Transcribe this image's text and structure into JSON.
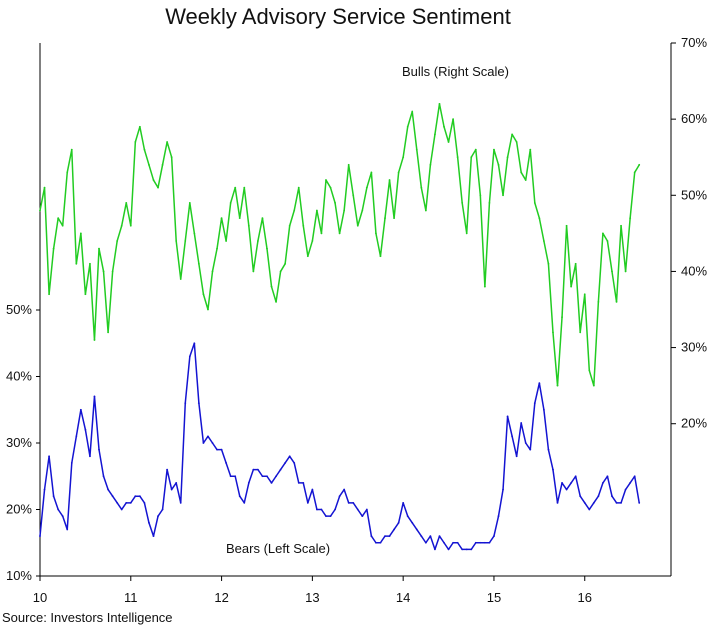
{
  "chart_data": {
    "type": "line",
    "title": "Weekly Advisory Service Sentiment",
    "source": "Source: Investors Intelligence",
    "x_ticks": [
      "10",
      "11",
      "12",
      "13",
      "14",
      "15",
      "16"
    ],
    "xlim": [
      10,
      16.95
    ],
    "right_axis": {
      "ticks": [
        "70%",
        "60%",
        "50%",
        "40%",
        "30%",
        "20%"
      ],
      "ylim": [
        0,
        70
      ],
      "range_label_values": [
        20,
        30,
        40,
        50,
        60,
        70
      ]
    },
    "left_axis": {
      "ticks": [
        "50%",
        "40%",
        "30%",
        "20%",
        "10%"
      ],
      "ylim": [
        10,
        50
      ],
      "range_label_values": [
        10,
        20,
        30,
        40,
        50
      ]
    },
    "series": [
      {
        "name": "Bulls (Right Scale)",
        "axis": "right",
        "color": "#22cc22",
        "x": [
          10.0,
          10.05,
          10.1,
          10.15,
          10.2,
          10.25,
          10.3,
          10.35,
          10.4,
          10.45,
          10.5,
          10.55,
          10.6,
          10.65,
          10.7,
          10.75,
          10.8,
          10.85,
          10.9,
          10.95,
          11.0,
          11.05,
          11.1,
          11.15,
          11.2,
          11.25,
          11.3,
          11.35,
          11.4,
          11.45,
          11.5,
          11.55,
          11.6,
          11.65,
          11.7,
          11.75,
          11.8,
          11.85,
          11.9,
          11.95,
          12.0,
          12.05,
          12.1,
          12.15,
          12.2,
          12.25,
          12.3,
          12.35,
          12.4,
          12.45,
          12.5,
          12.55,
          12.6,
          12.65,
          12.7,
          12.75,
          12.8,
          12.85,
          12.9,
          12.95,
          13.0,
          13.05,
          13.1,
          13.15,
          13.2,
          13.25,
          13.3,
          13.35,
          13.4,
          13.45,
          13.5,
          13.55,
          13.6,
          13.65,
          13.7,
          13.75,
          13.8,
          13.85,
          13.9,
          13.95,
          14.0,
          14.05,
          14.1,
          14.15,
          14.2,
          14.25,
          14.3,
          14.35,
          14.4,
          14.45,
          14.5,
          14.55,
          14.6,
          14.65,
          14.7,
          14.75,
          14.8,
          14.85,
          14.9,
          14.95,
          15.0,
          15.05,
          15.1,
          15.15,
          15.2,
          15.25,
          15.3,
          15.35,
          15.4,
          15.45,
          15.5,
          15.55,
          15.6,
          15.65,
          15.7,
          15.75,
          15.8,
          15.85,
          15.9,
          15.95,
          16.0,
          16.05,
          16.1,
          16.15,
          16.2,
          16.25,
          16.3,
          16.35,
          16.4,
          16.45,
          16.5,
          16.55,
          16.6
        ],
        "values": [
          48,
          51,
          37,
          43,
          47,
          46,
          53,
          56,
          41,
          45,
          37,
          41,
          31,
          43,
          40,
          32,
          40,
          44,
          46,
          49,
          46,
          57,
          59,
          56,
          54,
          52,
          51,
          54,
          57,
          55,
          44,
          39,
          44,
          49,
          45,
          41,
          37,
          35,
          40,
          43,
          47,
          44,
          49,
          51,
          47,
          51,
          46,
          40,
          44,
          47,
          43,
          38,
          36,
          40,
          41,
          46,
          48,
          51,
          46,
          42,
          44,
          48,
          45,
          52,
          51,
          49,
          45,
          48,
          54,
          50,
          46,
          48,
          51,
          53,
          45,
          42,
          47,
          52,
          47,
          53,
          55,
          59,
          61,
          56,
          51,
          48,
          54,
          58,
          62,
          59,
          57,
          60,
          55,
          49,
          45,
          55,
          56,
          50,
          38,
          49,
          56,
          54,
          50,
          55,
          58,
          57,
          53,
          52,
          56,
          49,
          47,
          44,
          41,
          32,
          25,
          34,
          46,
          38,
          41,
          32,
          37,
          27,
          25,
          36,
          45,
          44,
          40,
          36,
          46,
          40,
          47,
          53,
          54
        ]
      },
      {
        "name": "Bears (Left Scale)",
        "axis": "left",
        "color": "#1414d2",
        "x": [
          10.0,
          10.05,
          10.1,
          10.15,
          10.2,
          10.25,
          10.3,
          10.35,
          10.4,
          10.45,
          10.5,
          10.55,
          10.6,
          10.65,
          10.7,
          10.75,
          10.8,
          10.85,
          10.9,
          10.95,
          11.0,
          11.05,
          11.1,
          11.15,
          11.2,
          11.25,
          11.3,
          11.35,
          11.4,
          11.45,
          11.5,
          11.55,
          11.6,
          11.65,
          11.7,
          11.75,
          11.8,
          11.85,
          11.9,
          11.95,
          12.0,
          12.05,
          12.1,
          12.15,
          12.2,
          12.25,
          12.3,
          12.35,
          12.4,
          12.45,
          12.5,
          12.55,
          12.6,
          12.65,
          12.7,
          12.75,
          12.8,
          12.85,
          12.9,
          12.95,
          13.0,
          13.05,
          13.1,
          13.15,
          13.2,
          13.25,
          13.3,
          13.35,
          13.4,
          13.45,
          13.5,
          13.55,
          13.6,
          13.65,
          13.7,
          13.75,
          13.8,
          13.85,
          13.9,
          13.95,
          14.0,
          14.05,
          14.1,
          14.15,
          14.2,
          14.25,
          14.3,
          14.35,
          14.4,
          14.45,
          14.5,
          14.55,
          14.6,
          14.65,
          14.7,
          14.75,
          14.8,
          14.85,
          14.9,
          14.95,
          15.0,
          15.05,
          15.1,
          15.15,
          15.2,
          15.25,
          15.3,
          15.35,
          15.4,
          15.45,
          15.5,
          15.55,
          15.6,
          15.65,
          15.7,
          15.75,
          15.8,
          15.85,
          15.9,
          15.95,
          16.0,
          16.05,
          16.1,
          16.15,
          16.2,
          16.25,
          16.3,
          16.35,
          16.4,
          16.45,
          16.5,
          16.55,
          16.6
        ],
        "values": [
          16,
          23,
          28,
          22,
          20,
          19,
          17,
          27,
          31,
          35,
          32,
          28,
          37,
          29,
          25,
          23,
          22,
          21,
          20,
          21,
          21,
          22,
          22,
          21,
          18,
          16,
          19,
          20,
          26,
          23,
          24,
          21,
          36,
          43,
          45,
          36,
          30,
          31,
          30,
          29,
          29,
          27,
          25,
          25,
          22,
          21,
          24,
          26,
          26,
          25,
          25,
          24,
          25,
          26,
          27,
          28,
          27,
          24,
          24,
          21,
          23,
          20,
          20,
          19,
          19,
          20,
          22,
          23,
          21,
          21,
          20,
          19,
          20,
          16,
          15,
          15,
          16,
          16,
          17,
          18,
          21,
          19,
          18,
          17,
          16,
          15,
          16,
          14,
          16,
          15,
          14,
          15,
          15,
          14,
          14,
          14,
          15,
          15,
          15,
          15,
          16,
          19,
          23,
          34,
          31,
          28,
          33,
          30,
          29,
          36,
          39,
          35,
          29,
          26,
          21,
          24,
          23,
          24,
          25,
          22,
          21,
          20,
          21,
          22,
          24,
          25,
          22,
          21,
          21,
          23,
          24,
          25,
          21
        ]
      }
    ]
  }
}
